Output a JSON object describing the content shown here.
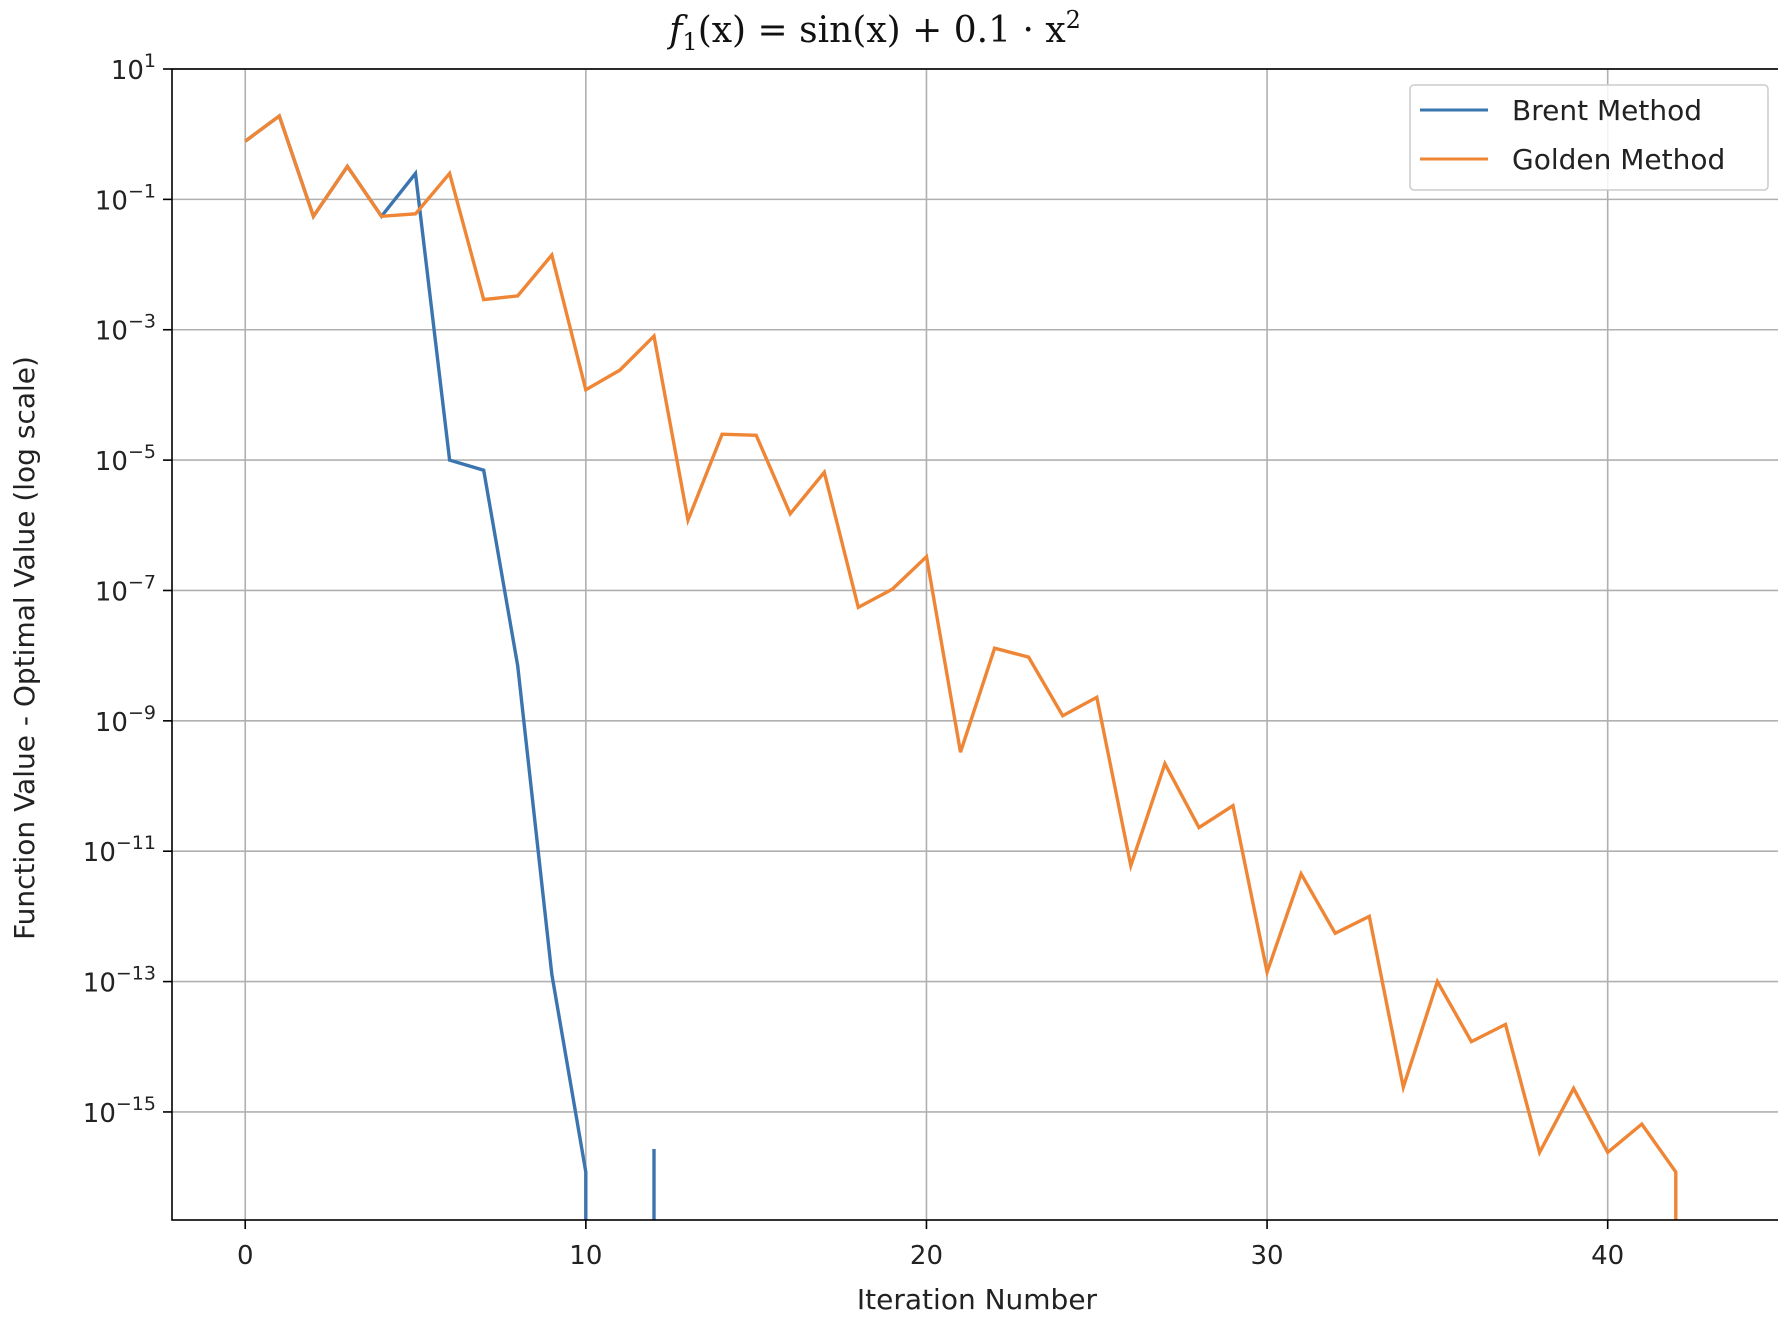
{
  "chart_data": {
    "type": "line",
    "title": "f₁(x) = sin(x) + 0.1 · x²",
    "title_parts": {
      "f": "f",
      "sub": "1",
      "mid": "(x) = sin(x) + 0.1 · x",
      "sup": "2"
    },
    "xlabel": "Iteration Number",
    "ylabel": "Function Value - Optimal Value (log scale)",
    "y_scale": "log",
    "xlim": [
      -2.15,
      45
    ],
    "ylim": [
      2.2e-17,
      10
    ],
    "x_ticks": [
      0,
      10,
      20,
      30,
      40
    ],
    "x_tick_labels": [
      "0",
      "10",
      "20",
      "30",
      "40"
    ],
    "y_ticks": [
      10,
      0.1,
      0.001,
      1e-05,
      1e-07,
      1e-09,
      1e-11,
      1e-13,
      1e-15
    ],
    "y_tick_labels": [
      {
        "base": "10",
        "exp": "1"
      },
      {
        "base": "10",
        "exp": "−1"
      },
      {
        "base": "10",
        "exp": "−3"
      },
      {
        "base": "10",
        "exp": "−5"
      },
      {
        "base": "10",
        "exp": "−7"
      },
      {
        "base": "10",
        "exp": "−9"
      },
      {
        "base": "10",
        "exp": "−11"
      },
      {
        "base": "10",
        "exp": "−13"
      },
      {
        "base": "10",
        "exp": "−15"
      }
    ],
    "grid": true,
    "legend_position": "top-right",
    "series": [
      {
        "name": "Brent Method",
        "color": "#3b75af",
        "segments": [
          [
            [
              0,
              0.78
            ],
            [
              1,
              1.9
            ],
            [
              2,
              0.055
            ],
            [
              3,
              0.32
            ],
            [
              4,
              0.055
            ],
            [
              5,
              0.25
            ],
            [
              6,
              1e-05
            ],
            [
              7,
              7e-06
            ],
            [
              8,
              7e-09
            ],
            [
              9,
              1.3e-13
            ],
            [
              10,
              1.2e-16
            ],
            [
              10,
              2.2e-17
            ]
          ],
          [
            [
              12,
              2.2e-17
            ],
            [
              12,
              2.7e-16
            ]
          ]
        ]
      },
      {
        "name": "Golden Method",
        "color": "#ef8636",
        "segments": [
          [
            [
              0,
              0.78
            ],
            [
              1,
              1.9
            ],
            [
              2,
              0.055
            ],
            [
              3,
              0.32
            ],
            [
              4,
              0.055
            ],
            [
              5,
              0.06
            ],
            [
              6,
              0.25
            ],
            [
              7,
              0.0029
            ],
            [
              8,
              0.0033
            ],
            [
              9,
              0.014
            ],
            [
              10,
              0.00012
            ],
            [
              11,
              0.00024
            ],
            [
              12,
              0.0008
            ],
            [
              13,
              1.2e-06
            ],
            [
              14,
              2.5e-05
            ],
            [
              15,
              2.4e-05
            ],
            [
              16,
              1.5e-06
            ],
            [
              17,
              6.5e-06
            ],
            [
              18,
              5.5e-08
            ],
            [
              19,
              1.05e-07
            ],
            [
              20,
              3.3e-07
            ],
            [
              21,
              3.3e-10
            ],
            [
              22,
              1.3e-08
            ],
            [
              23,
              9.5e-09
            ],
            [
              24,
              1.2e-09
            ],
            [
              25,
              2.3e-09
            ],
            [
              26,
              6e-12
            ],
            [
              27,
              2.2e-10
            ],
            [
              28,
              2.3e-11
            ],
            [
              29,
              5e-11
            ],
            [
              30,
              1.4e-13
            ],
            [
              31,
              4.5e-12
            ],
            [
              32,
              5.5e-13
            ],
            [
              33,
              1e-12
            ],
            [
              34,
              2.4e-15
            ],
            [
              35,
              1e-13
            ],
            [
              36,
              1.2e-14
            ],
            [
              37,
              2.2e-14
            ],
            [
              38,
              2.4e-16
            ],
            [
              39,
              2.3e-15
            ],
            [
              40,
              2.4e-16
            ],
            [
              41,
              6.5e-16
            ],
            [
              42,
              1.2e-16
            ],
            [
              42,
              2.2e-17
            ]
          ]
        ]
      }
    ]
  }
}
